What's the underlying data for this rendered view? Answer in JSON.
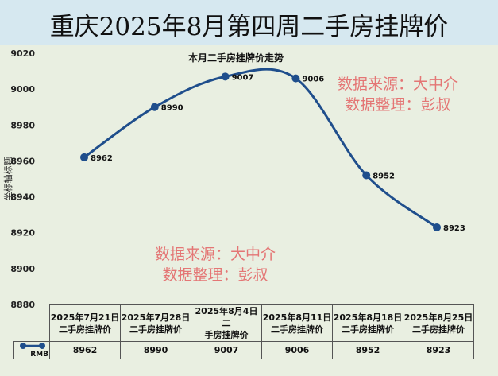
{
  "title": "重庆2025年8月第四周二手房挂牌价",
  "watermarks": [
    {
      "line1": "数据来源：大中介",
      "line2": "数据整理：彭叔"
    },
    {
      "line1": "数据来源：大中介",
      "line2": "数据整理：彭叔"
    }
  ],
  "chart_data": {
    "type": "line",
    "title": "本月二手房挂牌价走势",
    "ylabel": "坐标轴标题",
    "ylim": [
      8880,
      9020
    ],
    "yticks": [
      "9020",
      "9000",
      "8980",
      "8960",
      "8940",
      "8920",
      "8900",
      "8880"
    ],
    "categories": [
      "2025年7月21日二手房挂牌价",
      "2025年7月28日二手房挂牌价",
      "2025年8月4日二手房挂牌价",
      "2025年8月11日二手房挂牌价",
      "2025年8月18日二手房挂牌价",
      "2025年8月25日二手房挂牌价"
    ],
    "category_lines": [
      [
        "2025年7月21日",
        "二手房挂牌价"
      ],
      [
        "2025年7月28日",
        "二手房挂牌价"
      ],
      [
        "2025年8月4日二",
        "手房挂牌价"
      ],
      [
        "2025年8月11日",
        "二手房挂牌价"
      ],
      [
        "2025年8月18日",
        "二手房挂牌价"
      ],
      [
        "2025年8月25日",
        "二手房挂牌价"
      ]
    ],
    "series": [
      {
        "name": "RMB",
        "values": [
          8962,
          8990,
          9007,
          9006,
          8952,
          8923
        ],
        "color": "#1f4e8c"
      }
    ],
    "data_labels": [
      "8962",
      "8990",
      "9007",
      "9006",
      "8952",
      "8923"
    ],
    "grid": false,
    "legend": "data-table"
  }
}
